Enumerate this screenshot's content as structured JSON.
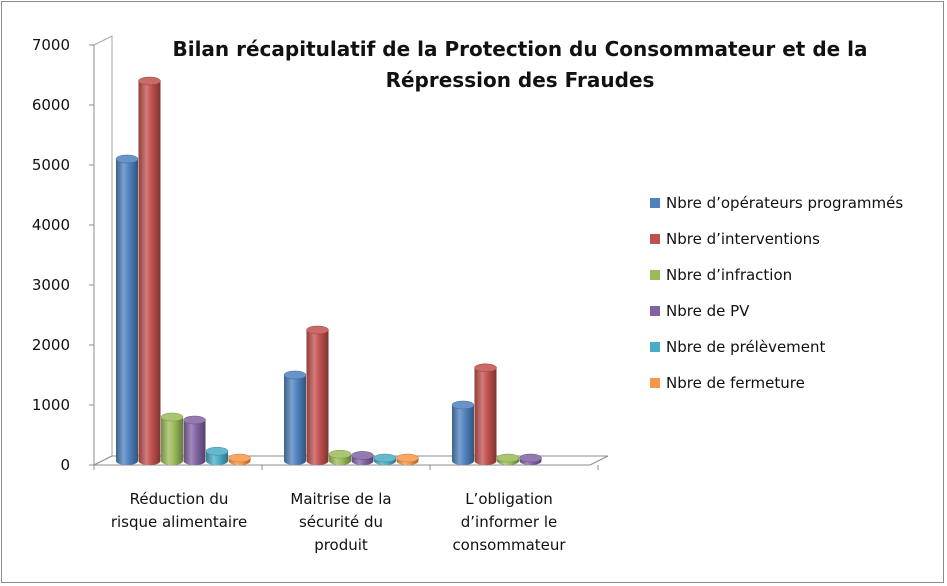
{
  "chart_data": {
    "type": "bar",
    "title_lines": [
      "Bilan récapitulatif de la Protection du  Consommateur et de la",
      "Répression des Fraudes"
    ],
    "categories": [
      [
        "Réduction du",
        "risque alimentaire"
      ],
      [
        "Maitrise de la",
        "sécurité du",
        "produit"
      ],
      [
        "L’obligation",
        "d’informer le",
        "consommateur"
      ]
    ],
    "series": [
      {
        "name": "Nbre d’opérateurs programmés",
        "color": "#4F81BD",
        "values": [
          5100,
          1500,
          1000
        ]
      },
      {
        "name": "Nbre d’interventions",
        "color": "#C0504D",
        "values": [
          6400,
          2250,
          1620
        ]
      },
      {
        "name": "Nbre d’infraction",
        "color": "#9BBB59",
        "values": [
          800,
          180,
          40
        ]
      },
      {
        "name": "Nbre de PV",
        "color": "#8064A2",
        "values": [
          750,
          160,
          40
        ]
      },
      {
        "name": "Nbre de prélèvement",
        "color": "#4BACC6",
        "values": [
          230,
          20,
          0
        ]
      },
      {
        "name": "Nbre de fermeture",
        "color": "#F79646",
        "values": [
          40,
          15,
          0
        ]
      }
    ],
    "ylim": [
      0,
      7000
    ],
    "yticks": [
      0,
      1000,
      2000,
      3000,
      4000,
      5000,
      6000,
      7000
    ],
    "grid": false,
    "legend_position": "right"
  }
}
